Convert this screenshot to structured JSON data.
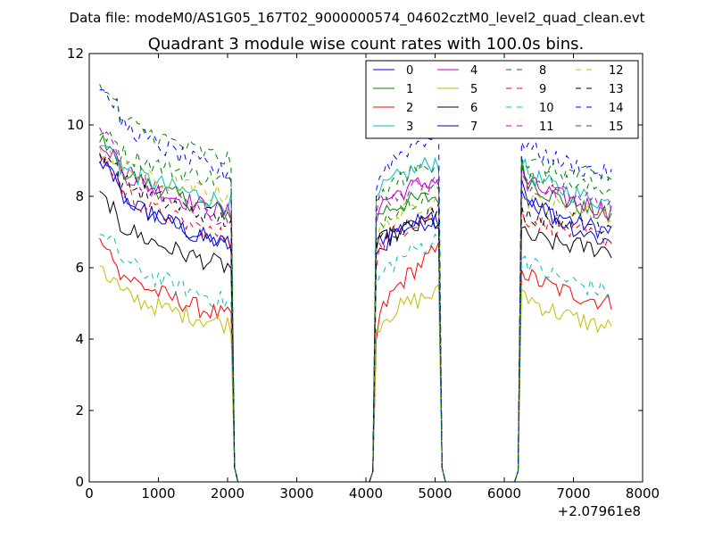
{
  "header": {
    "data_file": "Data file: modeM0/AS1G05_167T02_9000000574_04602cztM0_level2_quad_clean.evt"
  },
  "chart_data": {
    "type": "line",
    "title": "Quadrant 3 module wise count rates with 100.0s bins.",
    "xlabel": "",
    "ylabel": "",
    "xlim": [
      0,
      8000
    ],
    "ylim": [
      0,
      12
    ],
    "x_ticks": [
      0,
      1000,
      2000,
      3000,
      4000,
      5000,
      6000,
      7000,
      8000
    ],
    "x_tick_labels": [
      "0",
      "1000",
      "2000",
      "3000",
      "4000",
      "5000",
      "6000",
      "7000",
      "8000"
    ],
    "y_ticks": [
      0,
      2,
      4,
      6,
      8,
      10,
      12
    ],
    "y_tick_labels": [
      "0",
      "2",
      "4",
      "6",
      "8",
      "10",
      "12"
    ],
    "x_offset_label": "+2.07961e8",
    "grid": false,
    "legend_position": "top-right",
    "legend_columns": 4,
    "segments": [
      {
        "start": 150,
        "end": 2050
      },
      {
        "start": 4150,
        "end": 5050
      },
      {
        "start": 6250,
        "end": 7550
      }
    ],
    "gap_start": 2050,
    "gap_end": 4150,
    "series": [
      {
        "name": "0",
        "color": "#0000ff",
        "dash": "solid",
        "seg_levels": [
          [
            9.0,
            6.6
          ],
          [
            6.6,
            7.4
          ],
          [
            8.3,
            7.0
          ]
        ]
      },
      {
        "name": "1",
        "color": "#008000",
        "dash": "solid",
        "seg_levels": [
          [
            9.6,
            7.5
          ],
          [
            7.4,
            8.0
          ],
          [
            8.9,
            7.4
          ]
        ]
      },
      {
        "name": "2",
        "color": "#ff0000",
        "dash": "solid",
        "seg_levels": [
          [
            6.7,
            4.6
          ],
          [
            4.0,
            6.5
          ],
          [
            6.1,
            5.0
          ]
        ]
      },
      {
        "name": "3",
        "color": "#00bfbf",
        "dash": "solid",
        "seg_levels": [
          [
            9.5,
            7.8
          ],
          [
            7.8,
            9.0
          ],
          [
            9.0,
            7.8
          ]
        ]
      },
      {
        "name": "4",
        "color": "#bf00bf",
        "dash": "solid",
        "seg_levels": [
          [
            9.5,
            7.5
          ],
          [
            7.5,
            8.5
          ],
          [
            8.7,
            7.6
          ]
        ]
      },
      {
        "name": "5",
        "color": "#bfbf00",
        "dash": "solid",
        "seg_levels": [
          [
            5.9,
            4.4
          ],
          [
            4.2,
            5.3
          ],
          [
            5.5,
            4.3
          ]
        ]
      },
      {
        "name": "6",
        "color": "#000000",
        "dash": "solid",
        "seg_levels": [
          [
            8.0,
            6.0
          ],
          [
            6.5,
            7.3
          ],
          [
            7.0,
            6.5
          ]
        ]
      },
      {
        "name": "7",
        "color": "#0000bf",
        "dash": "solid",
        "seg_levels": [
          [
            9.0,
            6.6
          ],
          [
            6.3,
            7.4
          ],
          [
            8.5,
            6.7
          ]
        ]
      },
      {
        "name": "8",
        "color": "#008000",
        "dash": "dashed",
        "seg_levels": [
          [
            9.8,
            8.4
          ],
          [
            7.0,
            8.2
          ],
          [
            8.8,
            8.2
          ]
        ]
      },
      {
        "name": "9",
        "color": "#ff0000",
        "dash": "dashed",
        "seg_levels": [
          [
            9.1,
            6.8
          ],
          [
            6.2,
            7.6
          ],
          [
            7.6,
            6.8
          ]
        ]
      },
      {
        "name": "10",
        "color": "#00bfbf",
        "dash": "dashed",
        "seg_levels": [
          [
            7.1,
            5.0
          ],
          [
            5.4,
            6.8
          ],
          [
            6.5,
            5.3
          ]
        ]
      },
      {
        "name": "11",
        "color": "#bf00bf",
        "dash": "dashed",
        "seg_levels": [
          [
            9.9,
            7.3
          ],
          [
            7.7,
            8.4
          ],
          [
            8.5,
            7.8
          ]
        ]
      },
      {
        "name": "12",
        "color": "#bfbf00",
        "dash": "dashed",
        "seg_levels": [
          [
            9.3,
            8.0
          ],
          [
            6.6,
            8.0
          ],
          [
            8.1,
            7.5
          ]
        ]
      },
      {
        "name": "13",
        "color": "#000000",
        "dash": "dashed",
        "seg_levels": [
          [
            9.2,
            7.3
          ],
          [
            6.4,
            7.6
          ],
          [
            7.6,
            7.2
          ]
        ]
      },
      {
        "name": "14",
        "color": "#0000ff",
        "dash": "dashed",
        "seg_levels": [
          [
            11.1,
            8.6
          ],
          [
            8.2,
            9.8
          ],
          [
            9.7,
            8.6
          ]
        ]
      },
      {
        "name": "15",
        "color": "#008000",
        "dash": "dashed",
        "seg_levels": [
          [
            11.0,
            9.0
          ],
          [
            7.6,
            9.0
          ],
          [
            9.1,
            8.5
          ]
        ]
      }
    ]
  }
}
